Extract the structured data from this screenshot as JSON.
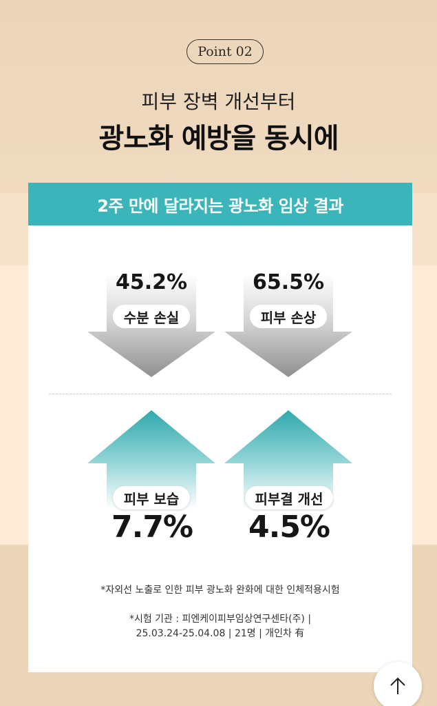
{
  "point_label": "Point 02",
  "subtitle": "피부 장벽 개선부터",
  "title": "광노화 예방을 동시에",
  "card": {
    "header": "2주 만에 달라지는 광노화 임상 결과",
    "decrease": [
      {
        "value": "45.2%",
        "label": "수분 손실"
      },
      {
        "value": "65.5%",
        "label": "피부 손상"
      }
    ],
    "increase": [
      {
        "label": "피부 보습",
        "value": "7.7%"
      },
      {
        "label": "피부결 개선",
        "value": "4.5%"
      }
    ],
    "note": "*자외선 노출로 인한 피부 광노화 완화에 대한 인체적용시험",
    "institution_line1": "*시험 기관 :  피엔케이피부임상연구센타(주) |",
    "institution_line2": "25.03.24-25.04.08 | 21명 | 개인차 有"
  },
  "colors": {
    "accent_teal": "#3bb5b9",
    "down_arrow_gray": "#9a9a9a"
  },
  "icons": {
    "scroll_top": "arrow-up-icon"
  }
}
